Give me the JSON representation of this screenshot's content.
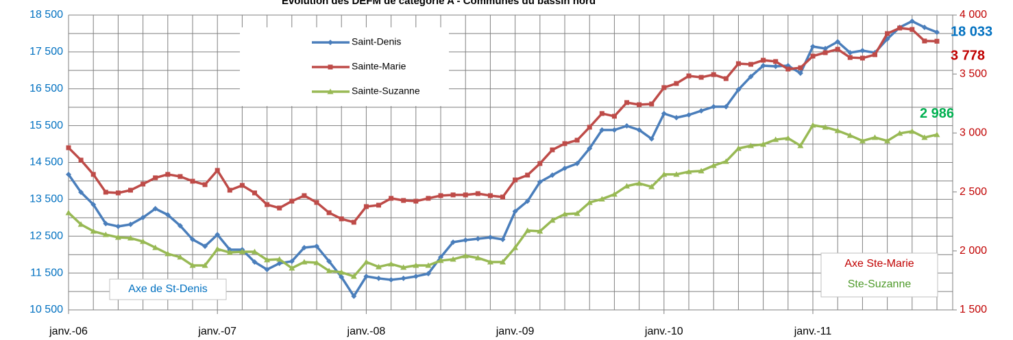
{
  "chart_data": {
    "type": "line",
    "title": "Évolution des DEFM de catégorie A - Communes du bassin nord",
    "categories": [
      "janv.-06",
      null,
      null,
      null,
      null,
      null,
      null,
      null,
      null,
      null,
      null,
      null,
      "janv.-07",
      null,
      null,
      null,
      null,
      null,
      null,
      null,
      null,
      null,
      null,
      null,
      "janv.-08",
      null,
      null,
      null,
      null,
      null,
      null,
      null,
      null,
      null,
      null,
      null,
      "janv.-09",
      null,
      null,
      null,
      null,
      null,
      null,
      null,
      null,
      null,
      null,
      null,
      "janv.-10",
      null,
      null,
      null,
      null,
      null,
      null,
      null,
      null,
      null,
      null,
      null,
      "janv.-11",
      null,
      null,
      null,
      null,
      null,
      null,
      null,
      null,
      null,
      null
    ],
    "series": [
      {
        "name": "Saint-Denis",
        "color": "#4a7ebb",
        "marker": "diamond",
        "axis": "y",
        "values": [
          14175,
          13693,
          13359,
          12840,
          12765,
          12820,
          13006,
          13247,
          13080,
          12784,
          12412,
          12227,
          12542,
          12134,
          12134,
          11800,
          11596,
          11763,
          11819,
          12190,
          12227,
          11819,
          11392,
          10872,
          11410,
          11355,
          11317,
          11355,
          11410,
          11484,
          11930,
          12338,
          12393,
          12431,
          12468,
          12412,
          13173,
          13451,
          13971,
          14157,
          14343,
          14472,
          14880,
          15382,
          15382,
          15493,
          15382,
          15141,
          15827,
          15716,
          15790,
          15902,
          16013,
          16013,
          16477,
          16830,
          17127,
          17108,
          17127,
          16922,
          17646,
          17591,
          17776,
          17479,
          17535,
          17479,
          17850,
          18166,
          18333,
          18166,
          18033
        ],
        "value_labels": [
          null,
          null,
          null,
          null,
          null,
          null,
          null,
          null,
          null,
          null,
          null,
          null,
          null,
          null,
          null,
          null,
          null,
          null,
          null,
          null,
          null,
          null,
          null,
          null,
          null,
          null,
          null,
          null,
          null,
          null,
          null,
          null,
          null,
          null,
          null,
          null,
          null,
          null,
          null,
          null,
          null,
          null,
          null,
          null,
          null,
          null,
          null,
          null,
          null,
          null,
          null,
          null,
          null,
          null,
          null,
          null,
          null,
          null,
          null,
          null,
          null,
          null,
          null,
          null,
          null,
          null,
          null,
          null,
          null,
          null,
          "18 033"
        ],
        "label_color": "#0070c0"
      },
      {
        "name": "Sainte-Marie",
        "color": "#be4b48",
        "marker": "square",
        "axis": "y2",
        "values": [
          2875,
          2770,
          2649,
          2498,
          2492,
          2515,
          2567,
          2620,
          2649,
          2631,
          2591,
          2562,
          2683,
          2515,
          2556,
          2492,
          2393,
          2364,
          2422,
          2469,
          2411,
          2324,
          2272,
          2243,
          2376,
          2388,
          2446,
          2428,
          2422,
          2446,
          2469,
          2475,
          2475,
          2486,
          2469,
          2457,
          2602,
          2643,
          2741,
          2857,
          2910,
          2939,
          3049,
          3165,
          3142,
          3258,
          3240,
          3246,
          3385,
          3420,
          3484,
          3472,
          3495,
          3461,
          3588,
          3582,
          3617,
          3606,
          3542,
          3553,
          3652,
          3681,
          3710,
          3640,
          3635,
          3664,
          3843,
          3890,
          3878,
          3780,
          3778
        ],
        "value_labels": [
          null,
          null,
          null,
          null,
          null,
          null,
          null,
          null,
          null,
          null,
          null,
          null,
          null,
          null,
          null,
          null,
          null,
          null,
          null,
          null,
          null,
          null,
          null,
          null,
          null,
          null,
          null,
          null,
          null,
          null,
          null,
          null,
          null,
          null,
          null,
          null,
          null,
          null,
          null,
          null,
          null,
          null,
          null,
          null,
          null,
          null,
          null,
          null,
          null,
          null,
          null,
          null,
          null,
          null,
          null,
          null,
          null,
          null,
          null,
          null,
          null,
          null,
          null,
          null,
          null,
          null,
          null,
          null,
          null,
          null,
          "3 778"
        ],
        "label_color": "#c00000"
      },
      {
        "name": "Sainte-Suzanne",
        "color": "#98b954",
        "marker": "triangle",
        "axis": "y2",
        "values": [
          2324,
          2225,
          2167,
          2138,
          2115,
          2109,
          2080,
          2028,
          1976,
          1947,
          1877,
          1877,
          2016,
          1987,
          1993,
          1993,
          1924,
          1929,
          1854,
          1906,
          1900,
          1831,
          1819,
          1784,
          1906,
          1865,
          1889,
          1860,
          1877,
          1877,
          1918,
          1929,
          1958,
          1941,
          1906,
          1906,
          2028,
          2173,
          2167,
          2260,
          2312,
          2318,
          2411,
          2440,
          2480,
          2550,
          2573,
          2544,
          2649,
          2649,
          2672,
          2678,
          2724,
          2759,
          2869,
          2892,
          2904,
          2944,
          2956,
          2892,
          3066,
          3049,
          3020,
          2979,
          2933,
          2962,
          2933,
          2997,
          3014,
          2962,
          2986
        ],
        "value_labels": [
          null,
          null,
          null,
          null,
          null,
          null,
          null,
          null,
          null,
          null,
          null,
          null,
          null,
          null,
          null,
          null,
          null,
          null,
          null,
          null,
          null,
          null,
          null,
          null,
          null,
          null,
          null,
          null,
          null,
          null,
          null,
          null,
          null,
          null,
          null,
          null,
          null,
          null,
          null,
          null,
          null,
          null,
          null,
          null,
          null,
          null,
          null,
          null,
          null,
          null,
          null,
          null,
          null,
          null,
          null,
          null,
          null,
          null,
          null,
          null,
          null,
          null,
          null,
          null,
          null,
          null,
          null,
          null,
          null,
          null,
          "2 986"
        ],
        "label_color": "#00b050"
      }
    ],
    "ylim": [
      10500,
      18500
    ],
    "yticks": [
      {
        "value": 10500,
        "label": "10 500"
      },
      {
        "value": 11500,
        "label": "11 500"
      },
      {
        "value": 12500,
        "label": "12 500"
      },
      {
        "value": 13500,
        "label": "13 500"
      },
      {
        "value": 14500,
        "label": "14 500"
      },
      {
        "value": 15500,
        "label": "15 500"
      },
      {
        "value": 16500,
        "label": "16 500"
      },
      {
        "value": 17500,
        "label": "17 500"
      },
      {
        "value": 18500,
        "label": "18 500"
      }
    ],
    "y2lim": [
      1500,
      4000
    ],
    "y2ticks": [
      {
        "value": 1500,
        "label": "1 500"
      },
      {
        "value": 2000,
        "label": "2 000"
      },
      {
        "value": 2500,
        "label": "2 500"
      },
      {
        "value": 3000,
        "label": "3 000"
      },
      {
        "value": 3500,
        "label": "3 500"
      },
      {
        "value": 4000,
        "label": "4 000"
      }
    ],
    "grid": true,
    "annotations": {
      "left_axis": "Axe de St-Denis",
      "right_axis_1": "Axe Ste-Marie",
      "right_axis_2": "Ste-Suzanne"
    }
  }
}
